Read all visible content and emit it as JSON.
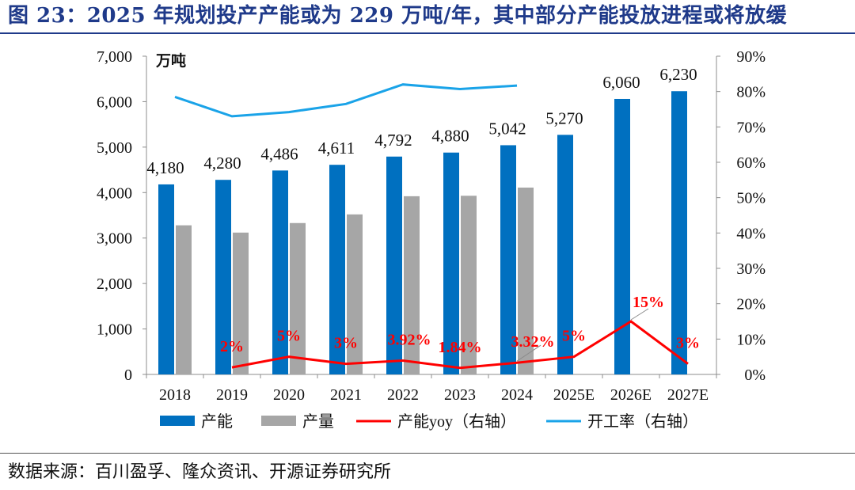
{
  "title": "图 23：2025 年规划投产产能或为 229 万吨/年，其中部分产能投放进程或将放缓",
  "source": "数据来源：百川盈孚、隆众资讯、开源证券研究所",
  "colors": {
    "capacity": "#0070c0",
    "output": "#a6a6a6",
    "yoy": "#ff0000",
    "utilization": "#1aa3e8",
    "title": "#1f3a8a"
  },
  "chart_data": {
    "type": "bar",
    "categories": [
      "2018",
      "2019",
      "2020",
      "2021",
      "2022",
      "2023",
      "2024",
      "2025E",
      "2026E",
      "2027E"
    ],
    "unit_label": "万吨",
    "ylim": [
      0,
      7000
    ],
    "y_ticks": [
      "0",
      "1,000",
      "2,000",
      "3,000",
      "4,000",
      "5,000",
      "6,000",
      "7,000"
    ],
    "y2lim": [
      0,
      90
    ],
    "y2_ticks": [
      "0%",
      "10%",
      "20%",
      "30%",
      "40%",
      "50%",
      "60%",
      "70%",
      "80%",
      "90%"
    ],
    "series": [
      {
        "name": "产能",
        "axis": "left",
        "kind": "bar",
        "values": [
          4180,
          4280,
          4486,
          4611,
          4792,
          4880,
          5042,
          5270,
          6060,
          6230
        ],
        "labels": [
          "4,180",
          "4,280",
          "4,486",
          "4,611",
          "4,792",
          "4,880",
          "5,042",
          "5,270",
          "6,060",
          "6,230"
        ]
      },
      {
        "name": "产量",
        "axis": "left",
        "kind": "bar",
        "values": [
          3280,
          3120,
          3330,
          3520,
          3920,
          3930,
          4110,
          null,
          null,
          null
        ]
      },
      {
        "name": "产能yoy（右轴）",
        "axis": "right",
        "kind": "line",
        "values": [
          null,
          2,
          5,
          3,
          3.92,
          1.84,
          3.32,
          5,
          15,
          3
        ],
        "labels": [
          "",
          "2%",
          "5%",
          "3%",
          "3.92%",
          "1.84%",
          "3.32%",
          "5%",
          "15%",
          "3%"
        ]
      },
      {
        "name": "开工率（右轴）",
        "axis": "right",
        "kind": "line",
        "values": [
          78.5,
          73,
          74.2,
          76.5,
          82,
          80.7,
          81.7,
          null,
          null,
          null
        ]
      }
    ]
  }
}
